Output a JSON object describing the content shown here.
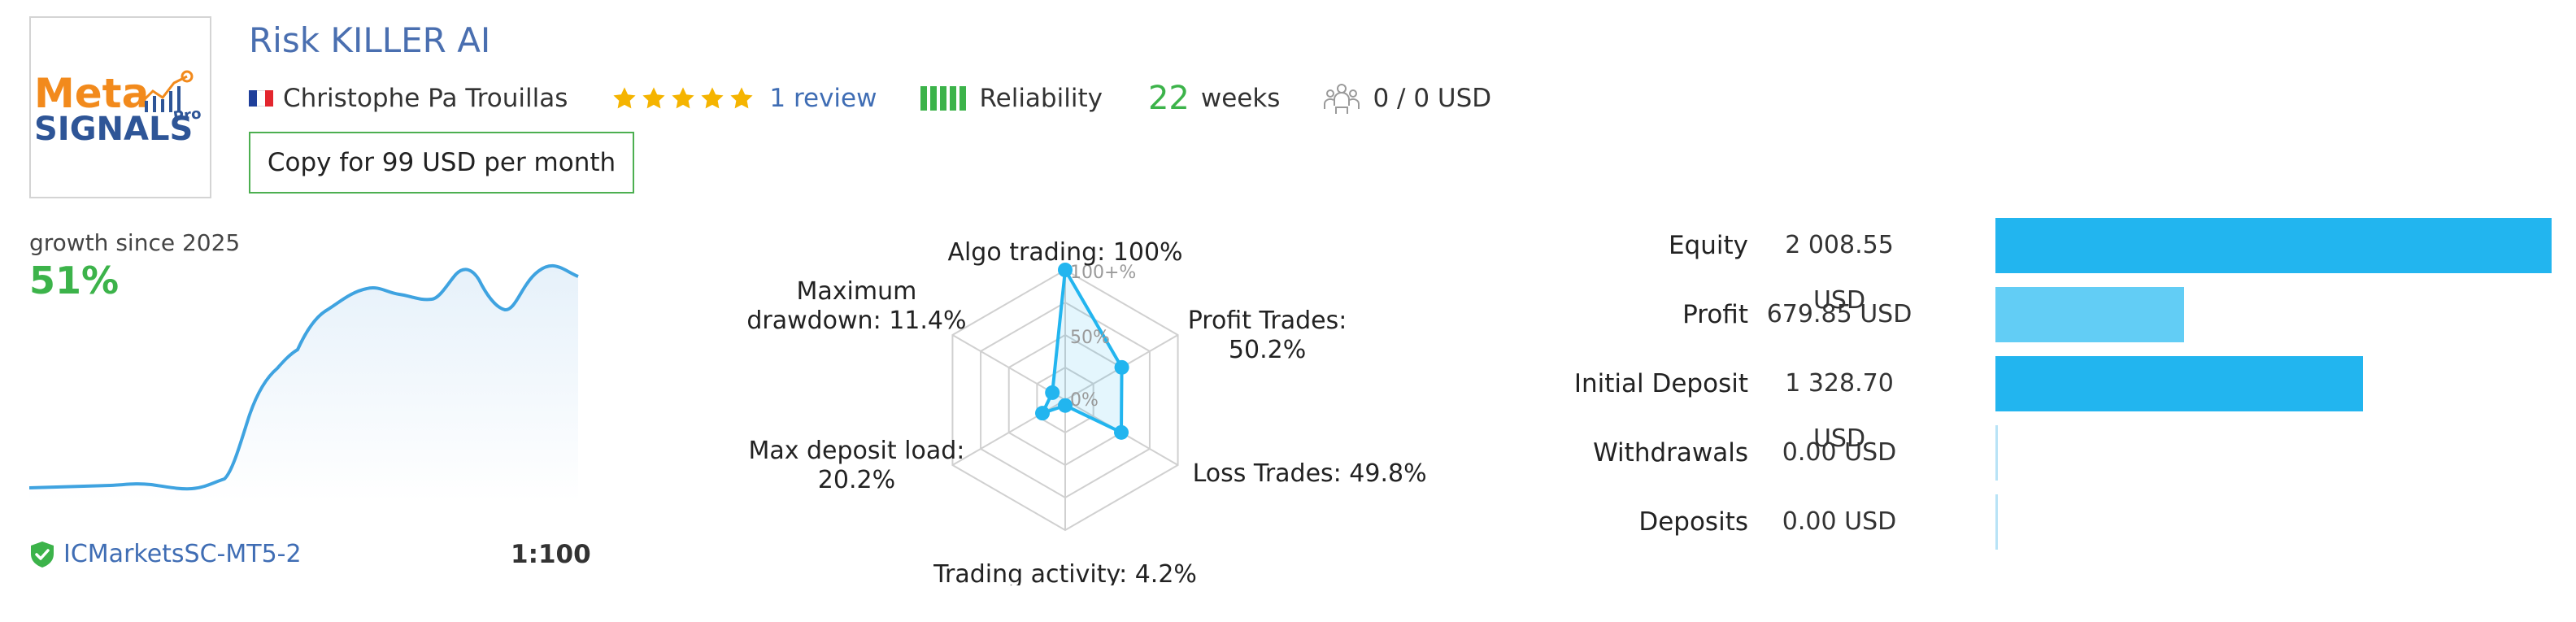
{
  "header": {
    "title": "Risk KILLER AI",
    "author": "Christophe Pa Trouillas",
    "flag_country": "France",
    "rating_stars": 5,
    "review_text": "1 review",
    "reliability_label": "Reliability",
    "weeks_value": "22",
    "weeks_label": "weeks",
    "subscribers_text": "0 / 0 USD",
    "copy_button_label": "Copy for 99 USD per month"
  },
  "logo": {
    "line1": "Meta",
    "line2": "SIGNALS",
    "suffix": "Pro"
  },
  "growth": {
    "label": "growth since 2025",
    "value": "51%",
    "broker": "ICMarketsSC-MT5-2",
    "leverage": "1:100"
  },
  "radar": {
    "scale_labels": [
      "100+%",
      "50%",
      "0%"
    ],
    "axes": [
      {
        "label_lines": [
          "Algo trading: 100%"
        ],
        "value": 100
      },
      {
        "label_lines": [
          "Profit Trades:",
          "50.2%"
        ],
        "value": 50.2
      },
      {
        "label_lines": [
          "Loss Trades: 49.8%"
        ],
        "value": 49.8
      },
      {
        "label_lines": [
          "Trading activity: 4.2%"
        ],
        "value": 4.2
      },
      {
        "label_lines": [
          "Max deposit load:",
          "20.2%"
        ],
        "value": 20.2
      },
      {
        "label_lines": [
          "Maximum",
          "drawdown: 11.4%"
        ],
        "value": 11.4
      }
    ]
  },
  "account_bars": [
    {
      "name": "Equity",
      "value_text": "2 008.55 USD",
      "value": 2008.55,
      "color": "#22b5ef"
    },
    {
      "name": "Profit",
      "value_text": "679.85 USD",
      "value": 679.85,
      "color": "#62cdf5"
    },
    {
      "name": "Initial Deposit",
      "value_text": "1 328.70 USD",
      "value": 1328.7,
      "color": "#22b5ef"
    },
    {
      "name": "Withdrawals",
      "value_text": "0.00 USD",
      "value": 0,
      "color": "#b8e3f6"
    },
    {
      "name": "Deposits",
      "value_text": "0.00 USD",
      "value": 0,
      "color": "#b8e3f6"
    }
  ],
  "colors": {
    "accent_blue": "#22b5ef",
    "link_blue": "#3f6db4",
    "positive_green": "#3cb34a",
    "star_gold": "#f5b400"
  }
}
